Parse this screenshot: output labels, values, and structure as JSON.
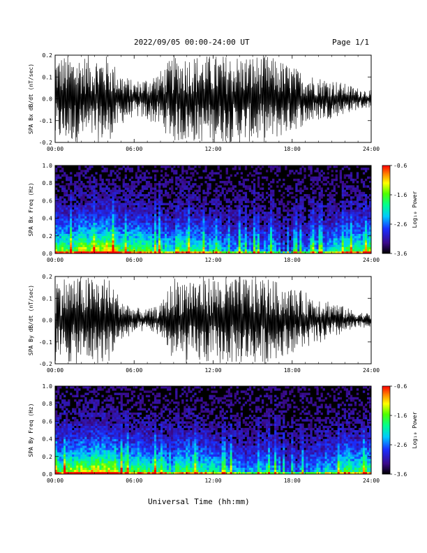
{
  "header": {
    "title": "2022/09/05  00:00-24:00 UT",
    "page": "Page 1/1"
  },
  "footer": {
    "xlabel": "Universal Time (hh:mm)"
  },
  "chart_data": [
    {
      "type": "line",
      "ylabel": "SPA Bx dB/dt (nT/sec)",
      "xlim": [
        0,
        24
      ],
      "ylim": [
        -0.2,
        0.2
      ],
      "x_ticks": [
        "00:00",
        "06:00",
        "12:00",
        "18:00",
        "24:00"
      ],
      "y_ticks": [
        "-0.2",
        "-0.1",
        "0.0",
        "0.1",
        "0.2"
      ],
      "color": "#000000",
      "envelope_x": [
        0,
        1,
        2,
        3,
        4,
        5,
        6,
        7,
        8,
        9,
        10,
        11,
        12,
        13,
        14,
        15,
        16,
        17,
        18,
        19,
        20,
        21,
        22,
        23,
        24
      ],
      "envelope_upper": [
        0.2,
        0.2,
        0.2,
        0.2,
        0.2,
        0.12,
        0.08,
        0.1,
        0.13,
        0.2,
        0.2,
        0.2,
        0.2,
        0.2,
        0.2,
        0.2,
        0.2,
        0.18,
        0.15,
        0.12,
        0.1,
        0.09,
        0.07,
        0.05,
        0.04
      ],
      "envelope_lower": [
        -0.2,
        -0.2,
        -0.2,
        -0.2,
        -0.2,
        -0.12,
        -0.08,
        -0.1,
        -0.13,
        -0.2,
        -0.2,
        -0.2,
        -0.2,
        -0.2,
        -0.2,
        -0.2,
        -0.2,
        -0.18,
        -0.15,
        -0.12,
        -0.1,
        -0.09,
        -0.07,
        -0.05,
        -0.04
      ]
    },
    {
      "type": "heatmap",
      "ylabel": "SPA Bx Freq (Hz)",
      "xlim": [
        0,
        24
      ],
      "ylim": [
        0,
        1.0
      ],
      "x_ticks": [
        "00:00",
        "06:00",
        "12:00",
        "18:00",
        "24:00"
      ],
      "y_ticks": [
        "0.0",
        "0.2",
        "0.4",
        "0.6",
        "0.8",
        "1.0"
      ],
      "colorbar": {
        "label": "Log₁₀ Power",
        "ticks": [
          "-0.6",
          "-1.6",
          "-2.6",
          "-3.6"
        ],
        "range": [
          -3.6,
          -0.6
        ]
      }
    },
    {
      "type": "line",
      "ylabel": "SPA By dB/dt (nT/sec)",
      "xlim": [
        0,
        24
      ],
      "ylim": [
        -0.2,
        0.2
      ],
      "x_ticks": [
        "00:00",
        "06:00",
        "12:00",
        "18:00",
        "24:00"
      ],
      "y_ticks": [
        "-0.2",
        "-0.1",
        "0.0",
        "0.1",
        "0.2"
      ],
      "color": "#000000",
      "envelope_x": [
        0,
        1,
        2,
        3,
        4,
        5,
        6,
        7,
        8,
        9,
        10,
        11,
        12,
        13,
        14,
        15,
        16,
        17,
        18,
        19,
        20,
        21,
        22,
        23,
        24
      ],
      "envelope_upper": [
        0.2,
        0.2,
        0.2,
        0.2,
        0.2,
        0.1,
        0.06,
        0.05,
        0.07,
        0.2,
        0.2,
        0.2,
        0.2,
        0.2,
        0.2,
        0.2,
        0.2,
        0.17,
        0.15,
        0.13,
        0.11,
        0.09,
        0.06,
        0.04,
        0.03
      ],
      "envelope_lower": [
        -0.2,
        -0.2,
        -0.2,
        -0.2,
        -0.2,
        -0.1,
        -0.06,
        -0.05,
        -0.07,
        -0.2,
        -0.2,
        -0.2,
        -0.2,
        -0.2,
        -0.2,
        -0.2,
        -0.2,
        -0.17,
        -0.15,
        -0.13,
        -0.11,
        -0.09,
        -0.06,
        -0.04,
        -0.03
      ]
    },
    {
      "type": "heatmap",
      "ylabel": "SPA By Freq (Hz)",
      "xlim": [
        0,
        24
      ],
      "ylim": [
        0,
        1.0
      ],
      "x_ticks": [
        "00:00",
        "06:00",
        "12:00",
        "18:00",
        "24:00"
      ],
      "y_ticks": [
        "0.0",
        "0.2",
        "0.4",
        "0.6",
        "0.8",
        "1.0"
      ],
      "colorbar": {
        "label": "Log₁₀ Power",
        "ticks": [
          "-0.6",
          "-1.6",
          "-2.6",
          "-3.6"
        ],
        "range": [
          -3.6,
          -0.6
        ]
      }
    }
  ]
}
